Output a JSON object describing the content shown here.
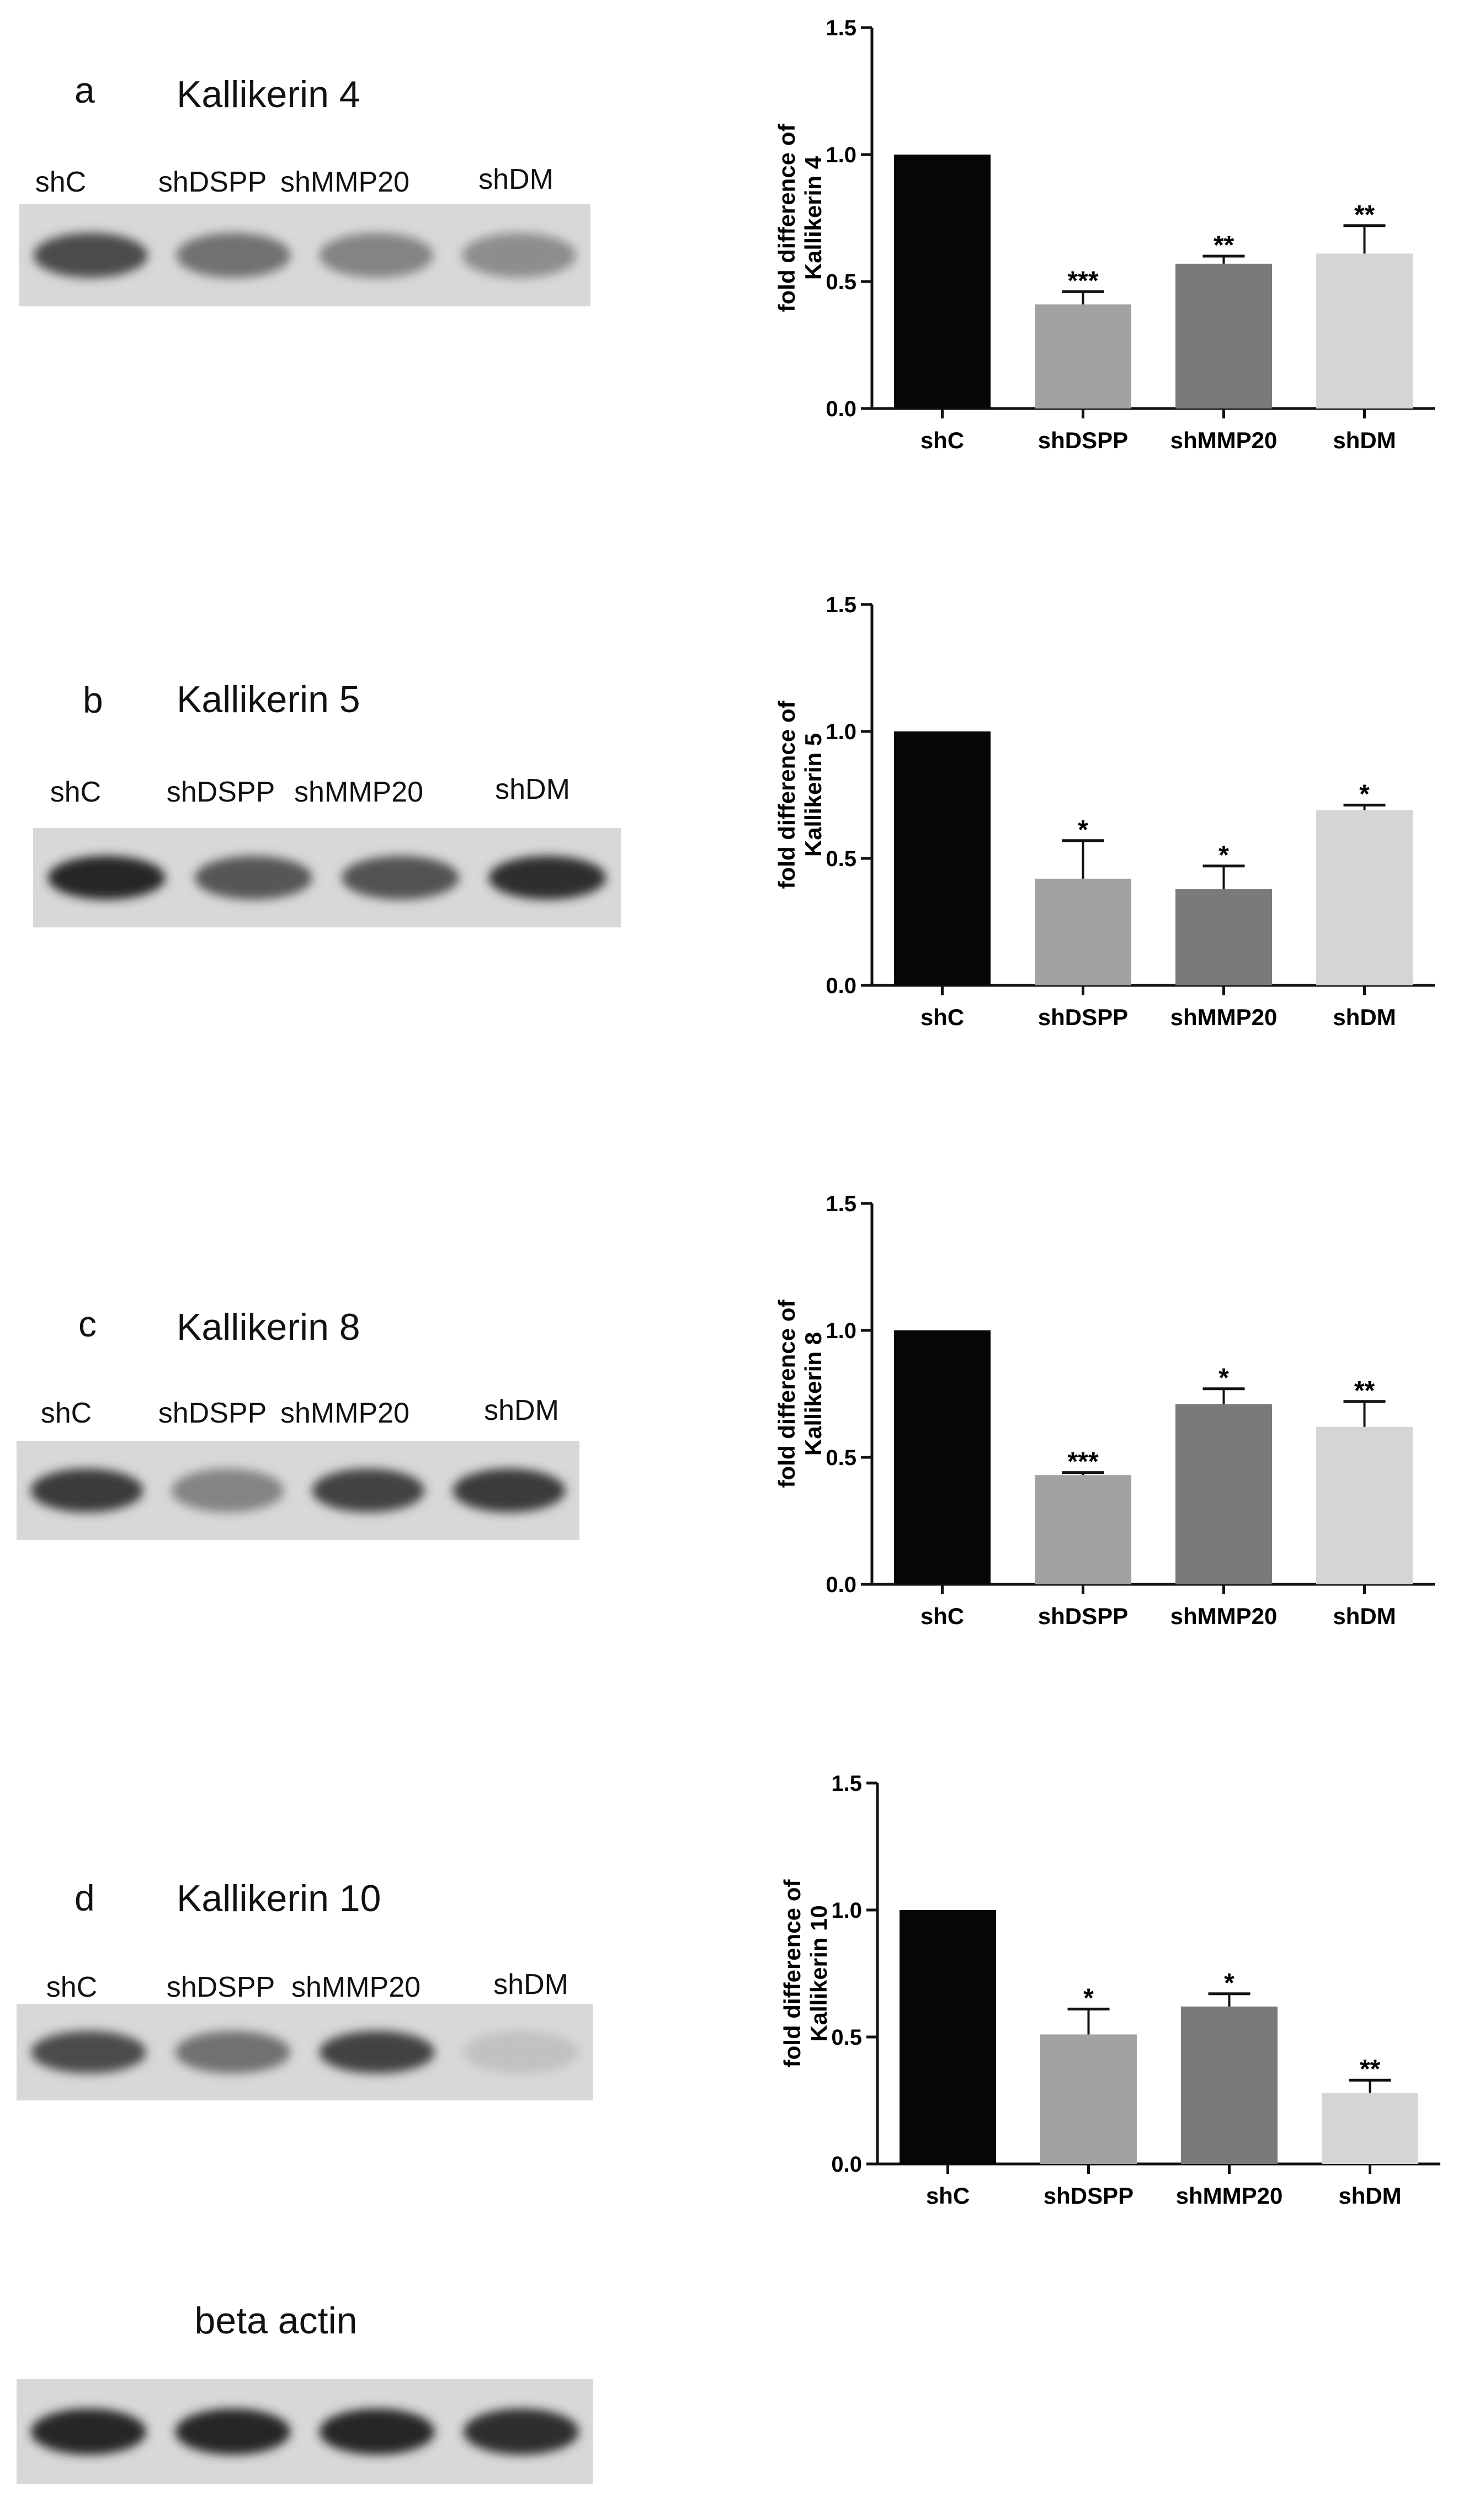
{
  "panels": [
    {
      "letter": "a",
      "title": "Kallikerin 4",
      "lanes": [
        "shC",
        "shDSPP",
        "shMMP20",
        "shDM"
      ],
      "band_intensity": [
        0.75,
        0.55,
        0.45,
        0.4
      ]
    },
    {
      "letter": "b",
      "title": "Kallikerin 5",
      "lanes": [
        "shC",
        "shDSPP",
        "shMMP20",
        "shDM"
      ],
      "band_intensity": [
        0.95,
        0.7,
        0.72,
        0.92
      ]
    },
    {
      "letter": "c",
      "title": "Kallikerin 8",
      "lanes": [
        "shC",
        "shDSPP",
        "shMMP20",
        "shDM"
      ],
      "band_intensity": [
        0.85,
        0.45,
        0.8,
        0.85
      ]
    },
    {
      "letter": "d",
      "title": "Kallikerin 10",
      "lanes": [
        "shC",
        "shDSPP",
        "shMMP20",
        "shDM"
      ],
      "band_intensity": [
        0.75,
        0.55,
        0.8,
        0.12
      ]
    }
  ],
  "actin": {
    "title": "beta actin",
    "band_intensity": [
      0.95,
      0.95,
      0.95,
      0.92
    ]
  },
  "chart_data": [
    {
      "type": "bar",
      "categories": [
        "shC",
        "shDSPP",
        "shMMP20",
        "shDM"
      ],
      "values": [
        1.0,
        0.41,
        0.57,
        0.61
      ],
      "errors": [
        0.0,
        0.05,
        0.03,
        0.11
      ],
      "significance": [
        "",
        "***",
        "**",
        "**"
      ],
      "ylabel": [
        "fold difference of",
        "Kallikerin 4"
      ],
      "xlabel": "",
      "ylim": [
        0,
        1.5
      ],
      "yticks": [
        "0.0",
        "0.5",
        "1.0",
        "1.5"
      ],
      "bar_colors": [
        "#060606",
        "#a2a2a2",
        "#7a7a7a",
        "#d5d5d5"
      ]
    },
    {
      "type": "bar",
      "categories": [
        "shC",
        "shDSPP",
        "shMMP20",
        "shDM"
      ],
      "values": [
        1.0,
        0.42,
        0.38,
        0.69
      ],
      "errors": [
        0.0,
        0.15,
        0.09,
        0.02
      ],
      "significance": [
        "",
        "*",
        "*",
        "*"
      ],
      "ylabel": [
        "fold difference of",
        "Kallikerin 5"
      ],
      "xlabel": "",
      "ylim": [
        0,
        1.5
      ],
      "yticks": [
        "0.0",
        "0.5",
        "1.0",
        "1.5"
      ],
      "bar_colors": [
        "#060606",
        "#a2a2a2",
        "#7a7a7a",
        "#d5d5d5"
      ]
    },
    {
      "type": "bar",
      "categories": [
        "shC",
        "shDSPP",
        "shMMP20",
        "shDM"
      ],
      "values": [
        1.0,
        0.43,
        0.71,
        0.62
      ],
      "errors": [
        0.0,
        0.01,
        0.06,
        0.1
      ],
      "significance": [
        "",
        "***",
        "*",
        "**"
      ],
      "ylabel": [
        "fold difference of",
        "Kallikerin 8"
      ],
      "xlabel": "",
      "ylim": [
        0,
        1.5
      ],
      "yticks": [
        "0.0",
        "0.5",
        "1.0",
        "1.5"
      ],
      "bar_colors": [
        "#060606",
        "#a2a2a2",
        "#7a7a7a",
        "#d5d5d5"
      ]
    },
    {
      "type": "bar",
      "categories": [
        "shC",
        "shDSPP",
        "shMMP20",
        "shDM"
      ],
      "values": [
        1.0,
        0.51,
        0.62,
        0.28
      ],
      "errors": [
        0.0,
        0.1,
        0.05,
        0.05
      ],
      "significance": [
        "",
        "*",
        "*",
        "**"
      ],
      "ylabel": [
        "fold difference of",
        "Kallikerin 10"
      ],
      "xlabel": "",
      "ylim": [
        0,
        1.5
      ],
      "yticks": [
        "0.0",
        "0.5",
        "1.0",
        "1.5"
      ],
      "bar_colors": [
        "#060606",
        "#a2a2a2",
        "#7a7a7a",
        "#d5d5d5"
      ]
    }
  ]
}
